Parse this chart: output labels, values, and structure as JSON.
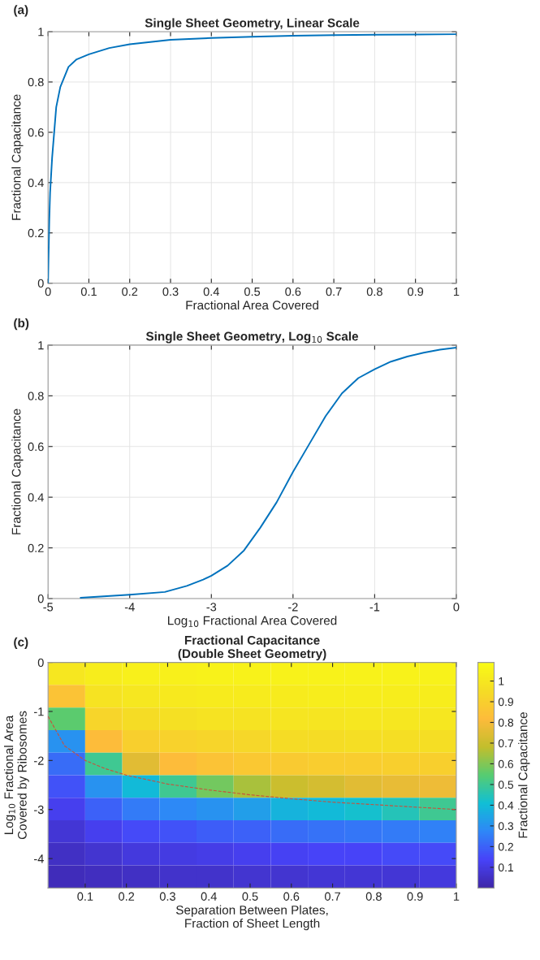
{
  "chart_data": [
    {
      "type": "line",
      "title": "Single Sheet Geometry, Linear Scale",
      "xlabel": "Fractional Area Covered",
      "ylabel": "Fractional Capacitance",
      "annotations": [
        "(a)"
      ],
      "x": [
        0,
        0.001,
        0.003,
        0.005,
        0.01,
        0.02,
        0.03,
        0.05,
        0.07,
        0.1,
        0.15,
        0.2,
        0.3,
        0.4,
        0.5,
        0.6,
        0.7,
        0.8,
        0.9,
        1
      ],
      "series": [
        {
          "color": "#0072bd",
          "values": [
            0,
            0.09,
            0.25,
            0.36,
            0.5,
            0.7,
            0.78,
            0.86,
            0.89,
            0.91,
            0.935,
            0.95,
            0.968,
            0.975,
            0.98,
            0.984,
            0.986,
            0.988,
            0.989,
            0.99
          ]
        }
      ],
      "xlim": [
        0,
        1
      ],
      "xticks": [
        0,
        0.1,
        0.2,
        0.3,
        0.4,
        0.5,
        0.6,
        0.7,
        0.8,
        0.9,
        1
      ],
      "ylim": [
        0,
        1
      ],
      "yticks": [
        0,
        0.2,
        0.4,
        0.6,
        0.8,
        1
      ],
      "grid": true
    },
    {
      "type": "line",
      "title": "Single Sheet Geometry, Log$_{10}$ Scale",
      "xlabel": "Log$_{10}$ Fractional Area Covered",
      "ylabel": "Fractional Capacitance",
      "annotations": [
        "(b)"
      ],
      "x": [
        -4.6,
        -4,
        -3.57,
        -3.3,
        -3.1,
        -3,
        -2.8,
        -2.6,
        -2.4,
        -2.2,
        -2,
        -1.8,
        -1.6,
        -1.4,
        -1.2,
        -1,
        -0.8,
        -0.6,
        -0.4,
        -0.2,
        0
      ],
      "series": [
        {
          "color": "#0072bd",
          "values": [
            0.003,
            0.015,
            0.026,
            0.05,
            0.075,
            0.09,
            0.13,
            0.19,
            0.28,
            0.38,
            0.5,
            0.61,
            0.72,
            0.81,
            0.87,
            0.905,
            0.935,
            0.955,
            0.97,
            0.982,
            0.99
          ]
        }
      ],
      "xlim": [
        -5,
        0
      ],
      "xticks": [
        -5,
        -4,
        -3,
        -2,
        -1,
        0
      ],
      "ylim": [
        0,
        1
      ],
      "yticks": [
        0,
        0.2,
        0.4,
        0.6,
        0.8,
        1
      ],
      "grid": true
    },
    {
      "type": "heatmap",
      "title": "Fractional Capacitance\n(Double Sheet Geometry)",
      "xlabel": "Separation Between Plates,\nFraction of Sheet Length",
      "ylabel": "Log$_{10}$ Fractional Area\nCovered by Ribosomes",
      "clabel": "Fractional Capacitance",
      "annotations": [
        "(c)"
      ],
      "x": [
        0.055,
        0.145,
        0.235,
        0.325,
        0.415,
        0.505,
        0.595,
        0.685,
        0.775,
        0.865,
        0.955
      ],
      "y": [
        -0.23,
        -0.69,
        -1.15,
        -1.61,
        -2.07,
        -2.53,
        -2.99,
        -3.45,
        -3.91,
        -4.37
      ],
      "cells": [
        [
          1.0,
          1.03,
          1.04,
          1.04,
          1.05,
          1.05,
          1.05,
          1.05,
          1.05,
          1.05,
          1.05
        ],
        [
          0.85,
          0.98,
          1.0,
          1.01,
          1.02,
          1.02,
          1.02,
          1.03,
          1.03,
          1.03,
          1.03
        ],
        [
          0.55,
          0.92,
          0.95,
          0.97,
          0.98,
          0.98,
          0.99,
          0.99,
          1.0,
          1.0,
          1.0
        ],
        [
          0.3,
          0.82,
          0.9,
          0.91,
          0.92,
          0.93,
          0.95,
          0.95,
          0.96,
          0.96,
          0.96
        ],
        [
          0.22,
          0.5,
          0.75,
          0.82,
          0.85,
          0.87,
          0.88,
          0.89,
          0.89,
          0.9,
          0.9
        ],
        [
          0.17,
          0.3,
          0.4,
          0.5,
          0.58,
          0.65,
          0.7,
          0.72,
          0.75,
          0.77,
          0.78
        ],
        [
          0.12,
          0.2,
          0.25,
          0.28,
          0.3,
          0.33,
          0.38,
          0.4,
          0.42,
          0.45,
          0.5
        ],
        [
          0.08,
          0.12,
          0.15,
          0.17,
          0.19,
          0.2,
          0.22,
          0.23,
          0.24,
          0.25,
          0.26
        ],
        [
          0.05,
          0.07,
          0.09,
          0.1,
          0.11,
          0.12,
          0.13,
          0.14,
          0.14,
          0.15,
          0.15
        ],
        [
          0.03,
          0.04,
          0.05,
          0.06,
          0.06,
          0.07,
          0.07,
          0.08,
          0.08,
          0.08,
          0.09
        ]
      ],
      "clim": [
        0,
        1.09
      ],
      "cticks": [
        0.1,
        0.2,
        0.3,
        0.4,
        0.5,
        0.6,
        0.7,
        0.8,
        0.9,
        1
      ],
      "xlim": [
        0.01,
        1
      ],
      "xticks": [
        0.1,
        0.2,
        0.3,
        0.4,
        0.5,
        0.6,
        0.7,
        0.8,
        0.9,
        1
      ],
      "ylim": [
        -4.6,
        0
      ],
      "yticks": [
        -4,
        -3,
        -2,
        -1,
        0
      ],
      "series": [
        {
          "type": "line",
          "color": "#c8503c",
          "line_style": "dashed",
          "x": [
            0.01,
            0.05,
            0.1,
            0.15,
            0.2,
            0.3,
            0.4,
            0.5,
            0.6,
            0.7,
            0.8,
            0.9,
            1
          ],
          "values": [
            -1.1,
            -1.7,
            -2.0,
            -2.17,
            -2.3,
            -2.48,
            -2.6,
            -2.7,
            -2.78,
            -2.85,
            -2.9,
            -2.95,
            -3.0
          ]
        }
      ]
    }
  ]
}
